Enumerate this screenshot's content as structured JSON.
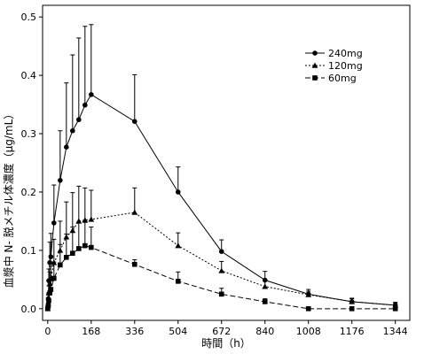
{
  "chart_data": {
    "type": "line",
    "xlabel": "時間（h）",
    "ylabel": "血漿中 N- 脱メチル体濃度（μg/mL）",
    "xlim": [
      -20,
      1400
    ],
    "ylim": [
      -0.02,
      0.52
    ],
    "xticks": [
      0,
      168,
      336,
      504,
      672,
      840,
      1008,
      1176,
      1344
    ],
    "yticks": [
      0.0,
      0.1,
      0.2,
      0.3,
      0.4,
      0.5
    ],
    "xtick_labels": [
      "0",
      "168",
      "336",
      "504",
      "672",
      "840",
      "1008",
      "1176",
      "1344"
    ],
    "ytick_labels": [
      "0.0",
      "0.1",
      "0.2",
      "0.3",
      "0.4",
      "0.5"
    ],
    "legend_position": "top-right",
    "grid": false,
    "series": [
      {
        "name": "240mg",
        "marker": "circle",
        "dash": "solid",
        "x": [
          0,
          2,
          4,
          8,
          12,
          24,
          48,
          72,
          96,
          120,
          144,
          168,
          336,
          504,
          672,
          840,
          1008,
          1176,
          1344
        ],
        "y": [
          0.0,
          0.017,
          0.048,
          0.079,
          0.089,
          0.147,
          0.22,
          0.277,
          0.305,
          0.324,
          0.349,
          0.367,
          0.321,
          0.2,
          0.098,
          0.049,
          0.025,
          0.012,
          0.006
        ],
        "err": [
          0.0,
          0.01,
          0.02,
          0.035,
          0.04,
          0.065,
          0.085,
          0.11,
          0.13,
          0.14,
          0.135,
          0.12,
          0.08,
          0.043,
          0.02,
          0.015,
          0.008,
          0.006,
          0.005
        ]
      },
      {
        "name": "120mg",
        "marker": "triangle",
        "dash": "dotted",
        "x": [
          0,
          2,
          4,
          8,
          12,
          24,
          48,
          72,
          96,
          120,
          144,
          168,
          336,
          504,
          672,
          840,
          1008,
          1176,
          1344
        ],
        "y": [
          0.0,
          0.009,
          0.027,
          0.043,
          0.051,
          0.079,
          0.1,
          0.123,
          0.134,
          0.15,
          0.152,
          0.153,
          0.165,
          0.108,
          0.065,
          0.038,
          0.024,
          0.012,
          0.006
        ],
        "err": [
          0.0,
          0.005,
          0.012,
          0.02,
          0.022,
          0.04,
          0.05,
          0.06,
          0.065,
          0.06,
          0.055,
          0.05,
          0.042,
          0.022,
          0.016,
          0.01,
          0.006,
          0.005,
          0.004
        ]
      },
      {
        "name": "60mg",
        "marker": "square",
        "dash": "dashed",
        "x": [
          0,
          2,
          4,
          8,
          12,
          24,
          48,
          72,
          96,
          120,
          144,
          168,
          336,
          504,
          672,
          840,
          1008,
          1176,
          1344
        ],
        "y": [
          0.0,
          0.005,
          0.014,
          0.027,
          0.033,
          0.052,
          0.075,
          0.088,
          0.095,
          0.103,
          0.108,
          0.105,
          0.076,
          0.047,
          0.025,
          0.012,
          0.0,
          0.0,
          0.0
        ],
        "err": [
          0.0,
          0.005,
          0.01,
          0.015,
          0.018,
          0.028,
          0.035,
          0.04,
          0.045,
          0.045,
          0.04,
          0.035,
          0.008,
          0.016,
          0.01,
          0.005,
          0.0,
          0.0,
          0.0
        ]
      }
    ]
  }
}
